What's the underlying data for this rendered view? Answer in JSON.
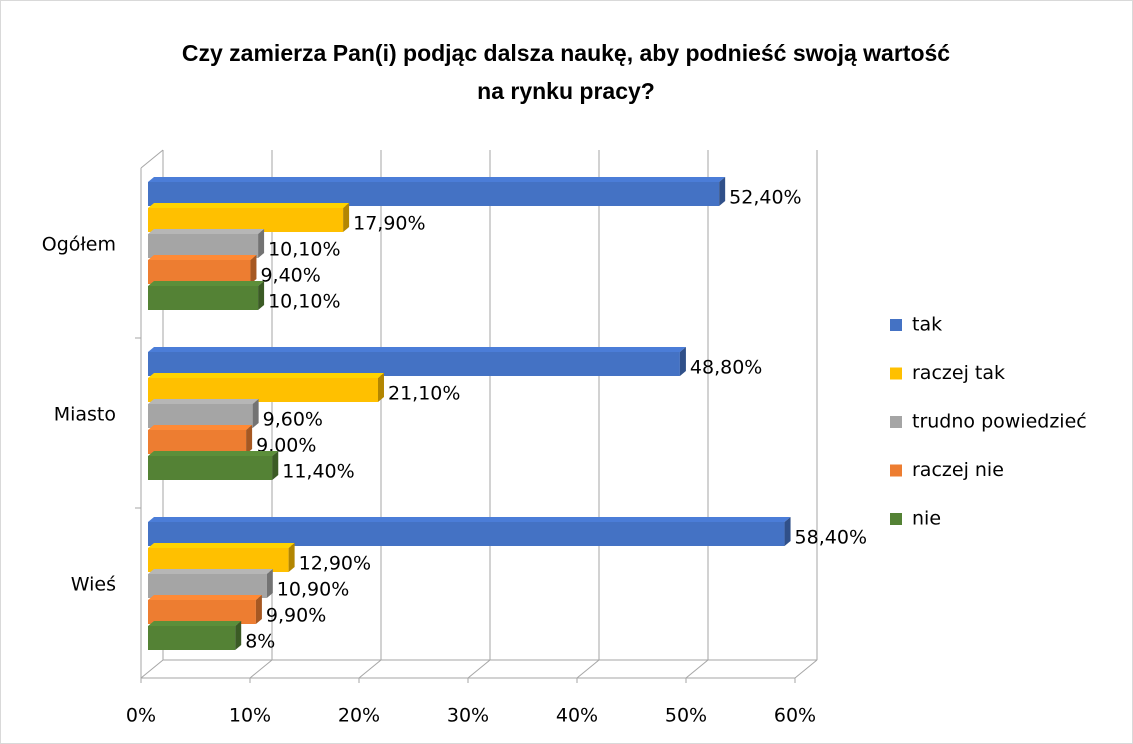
{
  "chart_data": {
    "type": "bar",
    "orientation": "horizontal",
    "title": "Czy zamierza Pan(i) podjąc dalsza naukę, aby podnieść swoją wartość na rynku pracy?",
    "categories": [
      "Ogółem",
      "Miasto",
      "Wieś"
    ],
    "series": [
      {
        "name": "tak",
        "color": "#4472c4",
        "values": [
          52.4,
          48.8,
          58.4
        ],
        "value_labels": [
          "52,40%",
          "48,80%",
          "58,40%"
        ]
      },
      {
        "name": "raczej tak",
        "color": "#ffc000",
        "values": [
          17.9,
          21.1,
          12.9
        ],
        "value_labels": [
          "17,90%",
          "21,10%",
          "12,90%"
        ]
      },
      {
        "name": "trudno powiedzieć",
        "color": "#a5a5a5",
        "values": [
          10.1,
          9.6,
          10.9
        ],
        "value_labels": [
          "10,10%",
          "9,60%",
          "10,90%"
        ]
      },
      {
        "name": "raczej nie",
        "color": "#ed7d31",
        "values": [
          9.4,
          9.0,
          9.9
        ],
        "value_labels": [
          "9,40%",
          "9,00%",
          "9,90%"
        ]
      },
      {
        "name": "nie",
        "color": "#548235",
        "values": [
          10.1,
          11.4,
          8
        ],
        "value_labels": [
          "10,10%",
          "11,40%",
          "8%"
        ]
      }
    ],
    "xlim": [
      0,
      60
    ],
    "xticks": [
      {
        "value": 0,
        "label": "0%"
      },
      {
        "value": 10,
        "label": "10%"
      },
      {
        "value": 20,
        "label": "20%"
      },
      {
        "value": 30,
        "label": "30%"
      },
      {
        "value": 40,
        "label": "40%"
      },
      {
        "value": 50,
        "label": "50%"
      },
      {
        "value": 60,
        "label": "60%"
      }
    ],
    "grid": true,
    "legend": "right"
  }
}
